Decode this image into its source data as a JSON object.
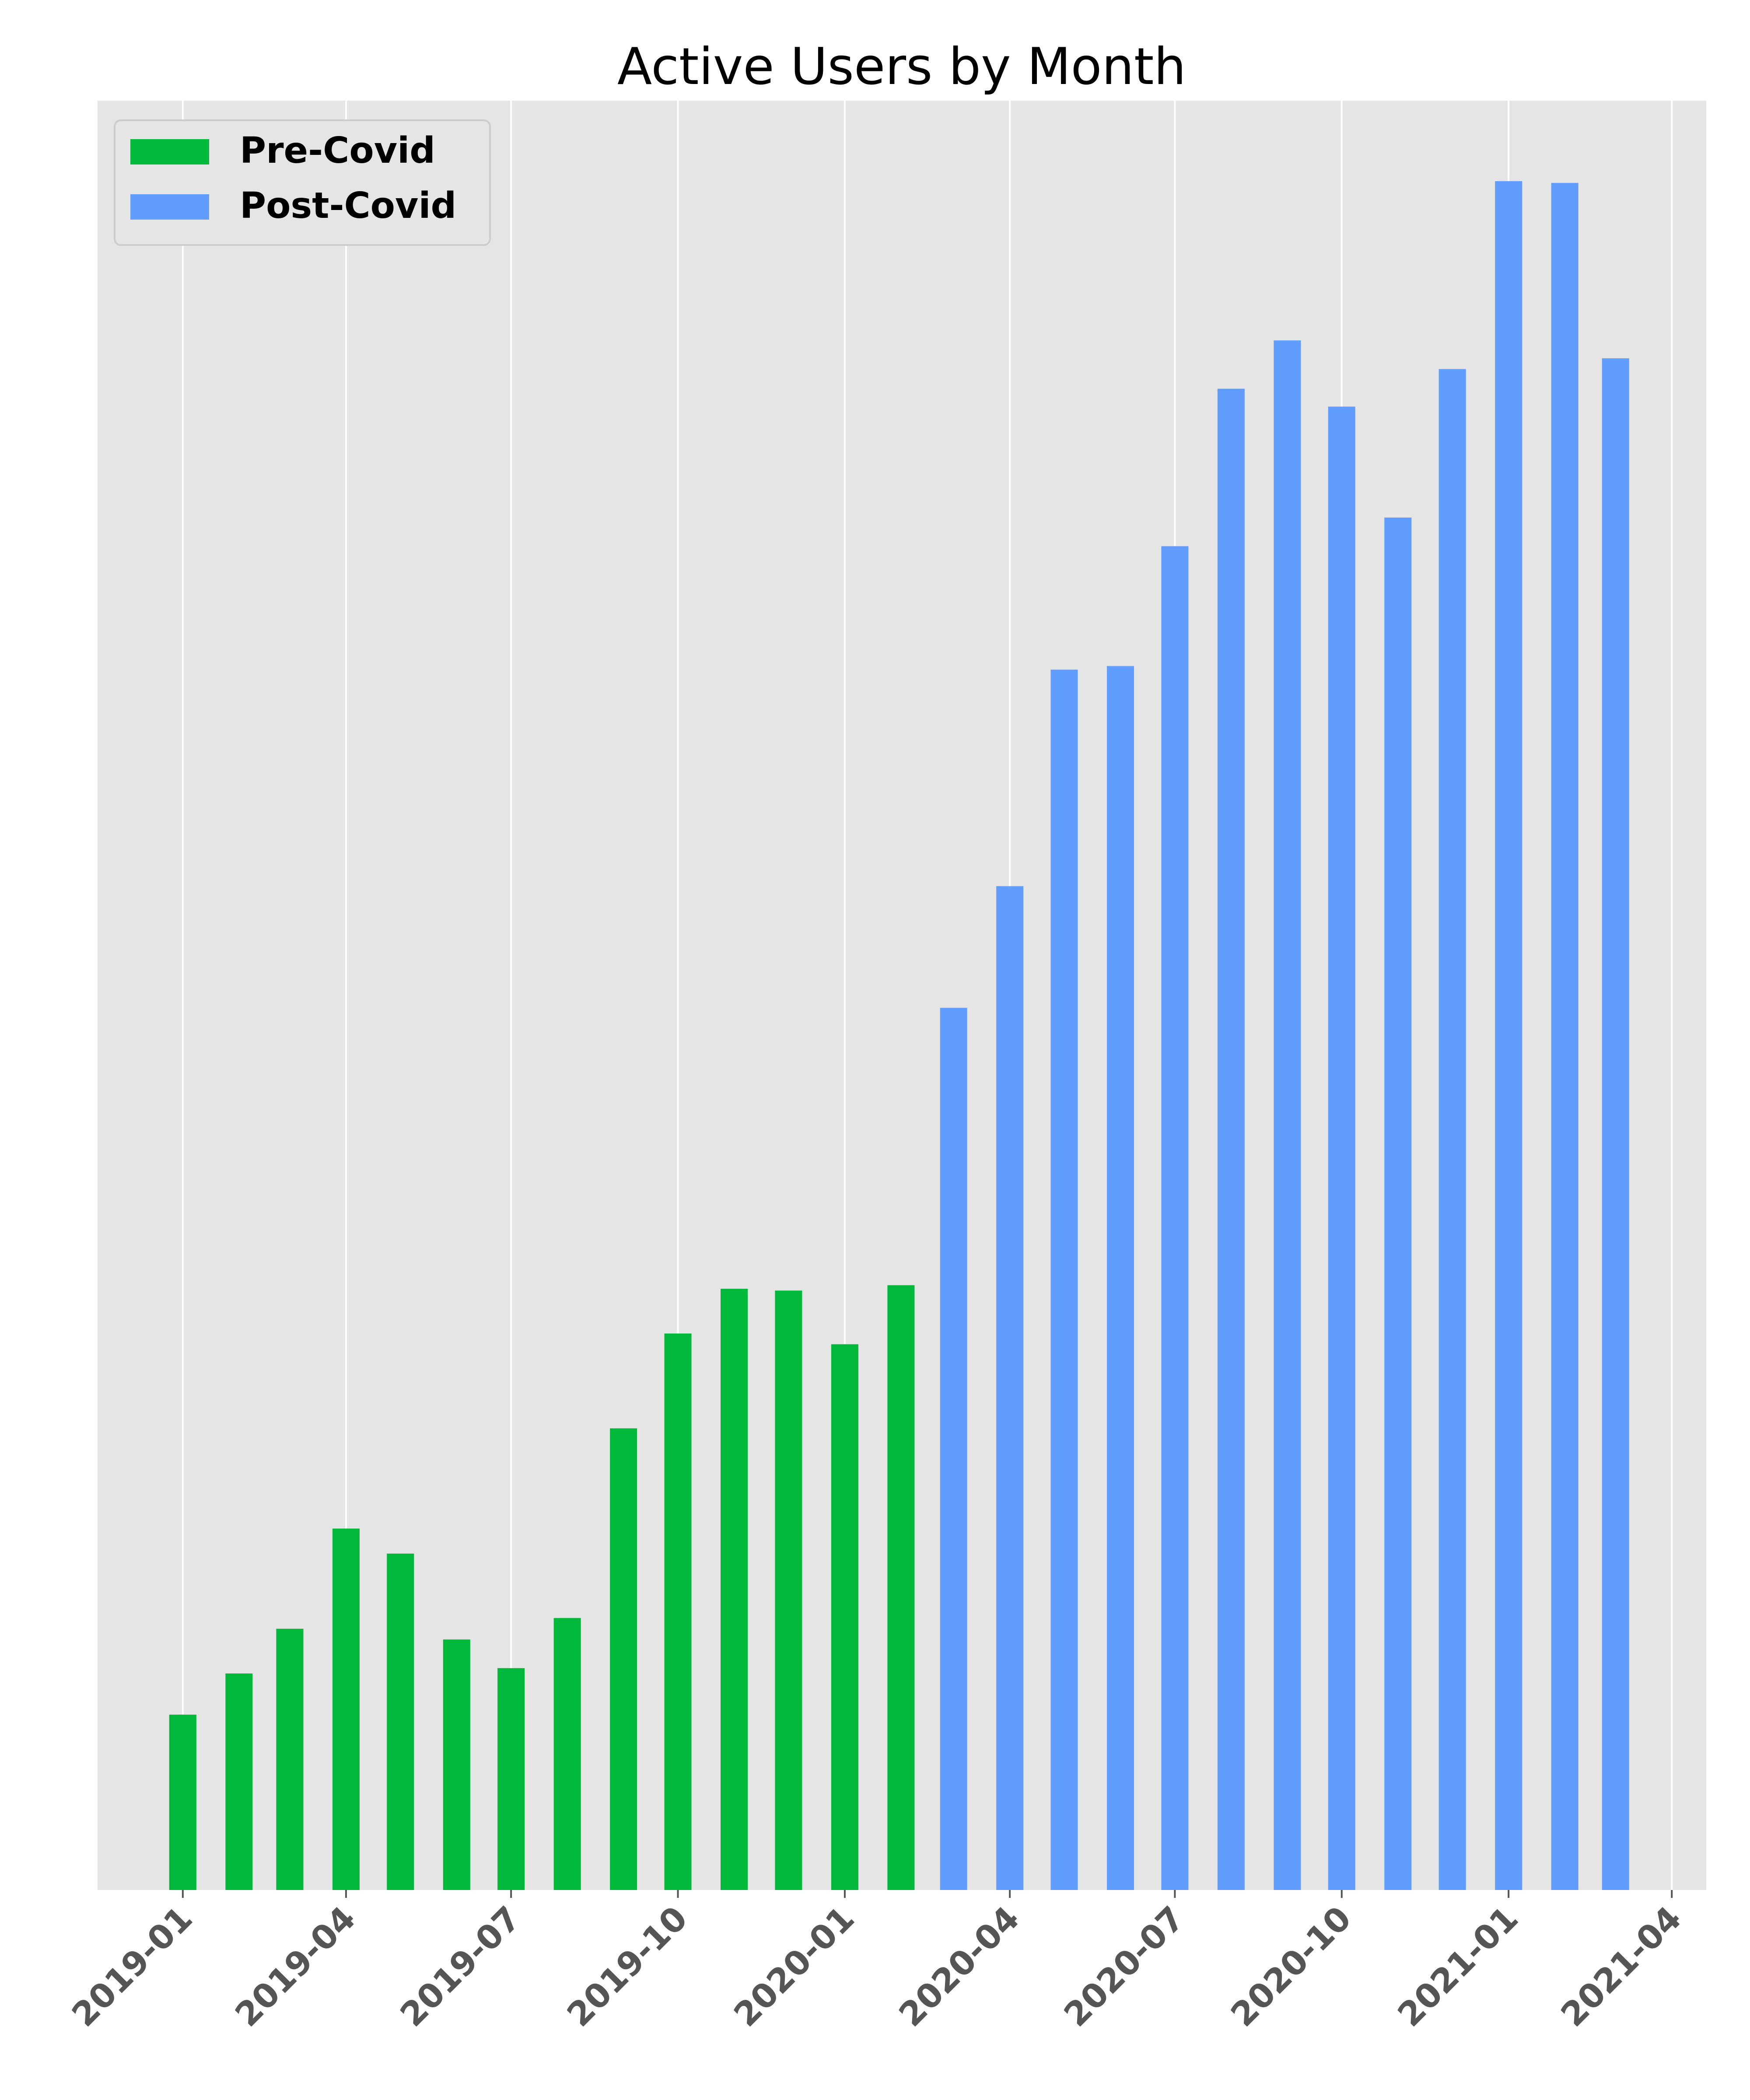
{
  "chart_data": {
    "type": "bar",
    "title": "Active Users by Month",
    "xlabel": "",
    "ylabel": "",
    "x_axis": {
      "type": "date",
      "ticks": [
        "2019-01",
        "2019-04",
        "2019-07",
        "2019-10",
        "2020-01",
        "2020-04",
        "2020-07",
        "2020-10",
        "2021-01",
        "2021-04"
      ],
      "range": [
        "2018-11-15",
        "2021-04-20"
      ]
    },
    "y_axis": {
      "range": [
        0,
        1000
      ],
      "tick_labels_visible": false
    },
    "grid": "vertical",
    "legend": {
      "position": "top-left",
      "entries": [
        "Pre-Covid",
        "Post-Covid"
      ]
    },
    "series": [
      {
        "name": "Pre-Covid",
        "color": "#00b83a",
        "x": [
          "2019-01",
          "2019-02",
          "2019-03",
          "2019-04",
          "2019-05",
          "2019-06",
          "2019-07",
          "2019-08",
          "2019-09",
          "2019-10",
          "2019-11",
          "2019-12",
          "2020-01",
          "2020-02"
        ],
        "values": [
          98,
          121,
          146,
          202,
          188,
          140,
          124,
          152,
          258,
          311,
          336,
          335,
          305,
          338
        ]
      },
      {
        "name": "Post-Covid",
        "color": "#619cff",
        "x": [
          "2020-03",
          "2020-04",
          "2020-05",
          "2020-06",
          "2020-07",
          "2020-08",
          "2020-09",
          "2020-10",
          "2020-11",
          "2020-12",
          "2021-01",
          "2021-02",
          "2021-03"
        ],
        "values": [
          493,
          561,
          682,
          684,
          751,
          839,
          866,
          829,
          767,
          850,
          955,
          954,
          856
        ]
      }
    ]
  }
}
